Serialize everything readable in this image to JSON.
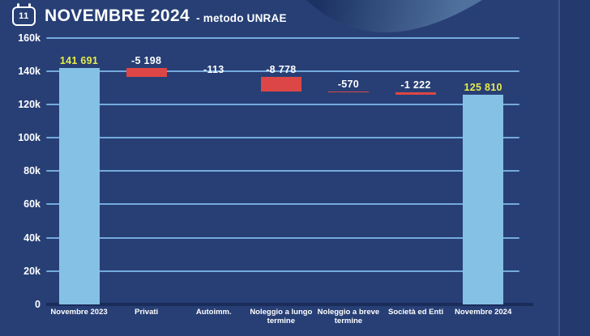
{
  "header": {
    "icon_day": "11",
    "title": "NOVEMBRE 2024",
    "subtitle": "- metodo UNRAE"
  },
  "chart_data": {
    "type": "waterfall",
    "title": "NOVEMBRE 2024 - metodo UNRAE",
    "categories": [
      "Novembre 2023",
      "Privati",
      "Autoimm.",
      "Noleggio a lungo\ntermine",
      "Noleggio a breve\ntermine",
      "Società ed Enti",
      "Novembre 2024"
    ],
    "values": [
      141691,
      -5198,
      -113,
      -8778,
      -570,
      -1222,
      125810
    ],
    "value_labels": [
      "141 691",
      "-5 198",
      "-113",
      "-8 778",
      "-570",
      "-1 222",
      "125 810"
    ],
    "bar_roles": [
      "total",
      "decrease",
      "decrease",
      "decrease",
      "decrease",
      "decrease",
      "total"
    ],
    "ylim": [
      0,
      160000
    ],
    "ytick_values": [
      0,
      20000,
      40000,
      60000,
      80000,
      100000,
      120000,
      140000,
      160000
    ],
    "ytick_labels": [
      "0",
      "20k",
      "40k",
      "60k",
      "80k",
      "100k",
      "120k",
      "140k",
      "160k"
    ],
    "grid": true,
    "legend": "none",
    "colors": {
      "background": "#273f75",
      "total_bar": "#85c1e5",
      "decrease_bar": "#dd4646",
      "total_label": "#e8ec49",
      "decrease_label": "#ffffff",
      "gridline": "#74aadd",
      "zero_axis": "#1a2c5a"
    }
  }
}
